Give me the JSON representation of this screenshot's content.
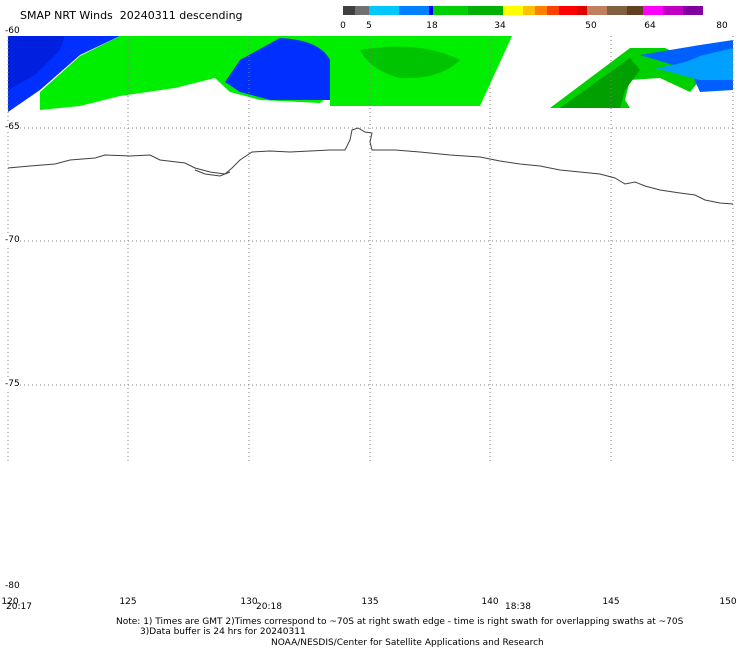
{
  "title": "SMAP NRT Winds  20240311 descending",
  "colorbar": {
    "labels": [
      "0",
      "5",
      "18",
      "34",
      "50",
      "64",
      "80"
    ],
    "colors": [
      "#404040",
      "#707070",
      "#00c8ff",
      "#0080ff",
      "#0000ff",
      "#00d000",
      "#00b000",
      "#ffff00",
      "#ffc000",
      "#ff8000",
      "#ff4000",
      "#ff0000",
      "#e00000",
      "#c08060",
      "#806040",
      "#604020",
      "#ff00ff",
      "#c000c0",
      "#8000a0"
    ]
  },
  "map": {
    "lat_labels": [
      "-60",
      "-65",
      "-70",
      "-75",
      "-80"
    ],
    "lon_labels": [
      "120",
      "125",
      "130",
      "135",
      "140",
      "145",
      "150"
    ],
    "times": [
      "20:17",
      "20:18",
      "18:38"
    ],
    "colors": {
      "wind_green": "#00ee00",
      "wind_dark_green": "#00b000",
      "wind_blue": "#0030ff",
      "wind_light_blue": "#00a0ff",
      "coast": "#404040",
      "grid": "#808080"
    }
  },
  "notes": {
    "line1": "Note: 1) Times are GMT 2)Times correspond to ~70S at right swath edge - time is right swath for overlapping swaths at ~70S",
    "line2": "3)Data buffer is 24 hrs for 20240311",
    "line3": "NOAA/NESDIS/Center for Satellite Applications and Research"
  }
}
